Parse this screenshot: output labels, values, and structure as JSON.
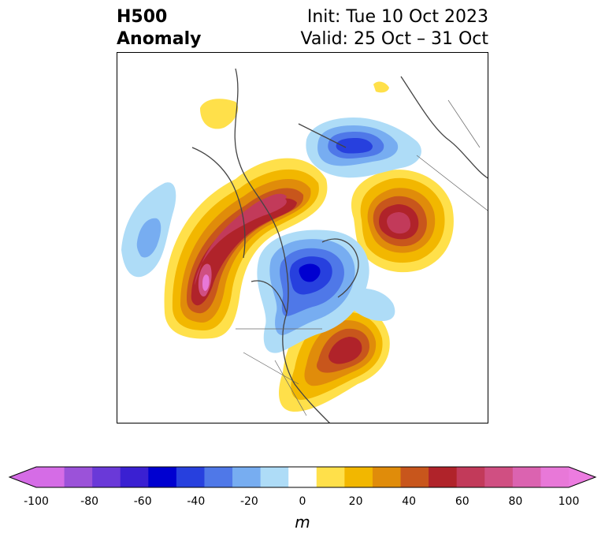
{
  "header": {
    "field": "H500",
    "subtitle": "Anomaly",
    "init": "Init: Tue 10 Oct 2023",
    "valid": "Valid: 25 Oct – 31 Oct"
  },
  "colorbar": {
    "unit": "m",
    "ticks": [
      "-100",
      "-80",
      "-60",
      "-40",
      "-20",
      "0",
      "20",
      "40",
      "60",
      "80",
      "100"
    ],
    "levels": [
      -100,
      -90,
      -80,
      -70,
      -60,
      -50,
      -40,
      -30,
      -20,
      -10,
      10,
      20,
      30,
      40,
      50,
      60,
      70,
      80,
      90,
      100
    ],
    "colors": [
      "#d56ce6",
      "#9b52d9",
      "#6a39d8",
      "#3a20d2",
      "#0000d0",
      "#2740de",
      "#4f78e8",
      "#77adf1",
      "#aedcf7",
      "#ffffff",
      "#ffe04a",
      "#f2b700",
      "#e08c0a",
      "#c8561c",
      "#b0232a",
      "#c23a5a",
      "#d04f82",
      "#db63b0",
      "#e878d8"
    ],
    "extend_colors": {
      "min": "#d56ce6",
      "max": "#ec7ce0"
    }
  }
}
